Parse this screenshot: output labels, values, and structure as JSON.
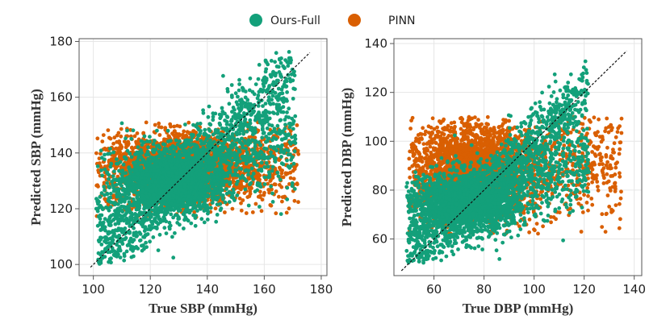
{
  "legend": {
    "items": [
      {
        "label": "Ours-Full",
        "color": "#13a07a"
      },
      {
        "label": "PINN",
        "color": "#d95f02"
      }
    ]
  },
  "chart_data": [
    {
      "type": "scatter",
      "name": "sbp",
      "xlabel": "True SBP (mmHg)",
      "ylabel": "Predicted SBP (mmHg)",
      "xlim": [
        95,
        182
      ],
      "ylim": [
        96,
        181
      ],
      "xticks": [
        100,
        120,
        140,
        160,
        180
      ],
      "yticks": [
        100,
        120,
        140,
        160,
        180
      ],
      "grid": true,
      "identity_line": {
        "from": [
          99,
          99
        ],
        "to": [
          176,
          176
        ],
        "style": "dashed",
        "color": "#111111"
      },
      "series": [
        {
          "name": "PINN",
          "color": "#d95f02",
          "center": [
            133,
            135
          ],
          "cluster_spread": [
            14,
            7
          ],
          "x_range": [
            101,
            172
          ],
          "y_range": [
            117,
            151
          ],
          "n_points": 3200
        },
        {
          "name": "Ours-Full",
          "color": "#13a07a",
          "center": [
            128,
            130
          ],
          "cluster_spread": [
            10,
            7
          ],
          "x_range": [
            101,
            171
          ],
          "y_range": [
            100,
            177
          ],
          "n_points": 3600
        }
      ]
    },
    {
      "type": "scatter",
      "name": "dbp",
      "xlabel": "True DBP (mmHg)",
      "ylabel": "Predicted DBP (mmHg)",
      "xlim": [
        44,
        143
      ],
      "ylim": [
        45,
        142
      ],
      "xticks": [
        60,
        80,
        100,
        120,
        140
      ],
      "yticks": [
        60,
        80,
        100,
        120,
        140
      ],
      "grid": true,
      "identity_line": {
        "from": [
          47,
          47
        ],
        "to": [
          137,
          137
        ],
        "style": "dashed",
        "color": "#111111"
      },
      "series": [
        {
          "name": "PINN",
          "color": "#d95f02",
          "center": [
            77,
            88
          ],
          "cluster_spread": [
            14,
            11
          ],
          "x_range": [
            50,
            135
          ],
          "y_range": [
            62,
            110
          ],
          "n_points": 3200
        },
        {
          "name": "Ours-Full",
          "color": "#13a07a",
          "center": [
            73,
            75
          ],
          "cluster_spread": [
            12,
            7
          ],
          "x_range": [
            49,
            122
          ],
          "y_range": [
            50,
            133
          ],
          "n_points": 3600
        }
      ]
    }
  ]
}
